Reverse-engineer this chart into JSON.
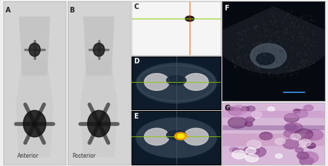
{
  "panels": [
    "A",
    "B",
    "C",
    "D",
    "E",
    "F",
    "G"
  ],
  "label_A": "A",
  "label_B": "B",
  "label_C": "C",
  "label_D": "D",
  "label_E": "E",
  "label_F": "F",
  "label_G": "G",
  "text_anterior": "Anterior",
  "text_posterior": "Posterior",
  "bg_ct": "#0d1b2a",
  "label_color": "#222222",
  "label_fontsize": 7,
  "annotation_fontsize": 5.5,
  "green_line": "#88cc00",
  "figure_bg": "#f0f0f0"
}
